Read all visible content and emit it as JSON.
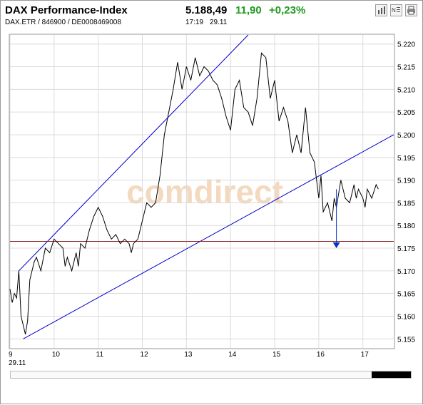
{
  "header": {
    "title": "DAX Performance-Index",
    "subtitle": "DAX.ETR  /  846900  /  DE0008469008",
    "price": "5.188,49",
    "change": "11,90",
    "change_pct": "+0,23%",
    "time": "17:19",
    "date": "29.11",
    "toolbar_icons": [
      "bar-chart-icon",
      "news-icon",
      "print-icon"
    ]
  },
  "watermark": "comdirect",
  "colors": {
    "positive": "#1e9b1e",
    "price_line": "#000000",
    "trend_lines": "#0000cc",
    "support_line": "#8b1a1a",
    "arrow": "#0033cc",
    "watermark": "#f3d9bf"
  },
  "chart_data": {
    "type": "line",
    "x_tick_labels": [
      "9",
      "10",
      "11",
      "12",
      "13",
      "14",
      "15",
      "16",
      "17"
    ],
    "x_sub_label": "29.11",
    "xlim": [
      9,
      17.7
    ],
    "ylim": [
      5.153,
      5.222
    ],
    "y_ticks": [
      5.155,
      5.16,
      5.165,
      5.17,
      5.175,
      5.18,
      5.185,
      5.19,
      5.195,
      5.2,
      5.205,
      5.21,
      5.215,
      5.22
    ],
    "y_tick_labels": [
      "5.155",
      "5.160",
      "5.165",
      "5.170",
      "5.175",
      "5.180",
      "5.185",
      "5.190",
      "5.195",
      "5.200",
      "5.205",
      "5.210",
      "5.215",
      "5.220"
    ],
    "grid": true,
    "series": [
      {
        "x": [
          9.0,
          9.05,
          9.1,
          9.15,
          9.2,
          9.25,
          9.3,
          9.35,
          9.4,
          9.45,
          9.5,
          9.55,
          9.6,
          9.7,
          9.8,
          9.9,
          10.0,
          10.1,
          10.2,
          10.25,
          10.3,
          10.4,
          10.5,
          10.55,
          10.6,
          10.7,
          10.8,
          10.9,
          11.0,
          11.1,
          11.2,
          11.3,
          11.4,
          11.5,
          11.6,
          11.7,
          11.75,
          11.8,
          11.9,
          12.0,
          12.1,
          12.2,
          12.3,
          12.4,
          12.5,
          12.6,
          12.7,
          12.8,
          12.9,
          13.0,
          13.1,
          13.2,
          13.3,
          13.4,
          13.5,
          13.6,
          13.7,
          13.8,
          13.9,
          14.0,
          14.1,
          14.2,
          14.3,
          14.4,
          14.5,
          14.6,
          14.7,
          14.8,
          14.9,
          15.0,
          15.1,
          15.2,
          15.3,
          15.4,
          15.5,
          15.6,
          15.7,
          15.8,
          15.9,
          16.0,
          16.05,
          16.1,
          16.2,
          16.3,
          16.35,
          16.4,
          16.5,
          16.6,
          16.7,
          16.8,
          16.85,
          16.9,
          17.0,
          17.05,
          17.1,
          17.2,
          17.3,
          17.35
        ],
        "y": [
          5.166,
          5.163,
          5.165,
          5.164,
          5.17,
          5.16,
          5.158,
          5.156,
          5.159,
          5.168,
          5.17,
          5.172,
          5.173,
          5.17,
          5.175,
          5.174,
          5.177,
          5.176,
          5.175,
          5.171,
          5.173,
          5.17,
          5.174,
          5.171,
          5.176,
          5.175,
          5.179,
          5.182,
          5.184,
          5.182,
          5.179,
          5.177,
          5.178,
          5.176,
          5.177,
          5.176,
          5.174,
          5.176,
          5.177,
          5.181,
          5.185,
          5.184,
          5.185,
          5.191,
          5.2,
          5.205,
          5.21,
          5.216,
          5.21,
          5.215,
          5.212,
          5.217,
          5.213,
          5.215,
          5.214,
          5.212,
          5.211,
          5.208,
          5.204,
          5.201,
          5.21,
          5.212,
          5.206,
          5.205,
          5.202,
          5.208,
          5.218,
          5.217,
          5.208,
          5.212,
          5.203,
          5.206,
          5.203,
          5.196,
          5.2,
          5.196,
          5.206,
          5.196,
          5.194,
          5.186,
          5.191,
          5.183,
          5.185,
          5.181,
          5.186,
          5.184,
          5.19,
          5.186,
          5.185,
          5.189,
          5.186,
          5.188,
          5.186,
          5.184,
          5.188,
          5.186,
          5.189,
          5.188
        ]
      }
    ],
    "trend_lines": [
      {
        "x": [
          9.2,
          14.4
        ],
        "y": [
          5.17,
          5.222
        ]
      },
      {
        "x": [
          9.3,
          17.7
        ],
        "y": [
          5.155,
          5.2
        ]
      }
    ],
    "support_line": {
      "y": 5.1765
    },
    "arrow": {
      "x": 16.4,
      "y_from": 5.188,
      "y_to": 5.175
    }
  }
}
